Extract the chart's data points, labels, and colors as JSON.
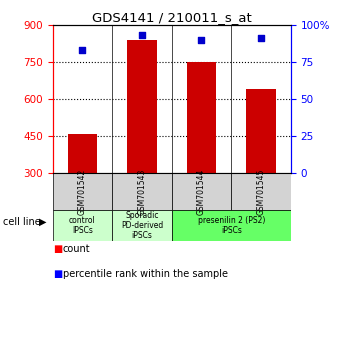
{
  "title": "GDS4141 / 210011_s_at",
  "samples": [
    "GSM701542",
    "GSM701543",
    "GSM701544",
    "GSM701545"
  ],
  "bar_values": [
    460,
    840,
    750,
    640
  ],
  "percentile_values": [
    83,
    93,
    90,
    91
  ],
  "bar_color": "#cc0000",
  "percentile_color": "#0000cc",
  "ylim_left": [
    300,
    900
  ],
  "ylim_right": [
    0,
    100
  ],
  "yticks_left": [
    300,
    450,
    600,
    750,
    900
  ],
  "yticks_right": [
    0,
    25,
    50,
    75,
    100
  ],
  "ytick_labels_right": [
    "0",
    "25",
    "50",
    "75",
    "100%"
  ],
  "grid_values": [
    450,
    600,
    750
  ],
  "cat0_label": "control\nIPSCs",
  "cat0_color": "#ccffcc",
  "cat1_label": "Sporadic\nPD-derived\niPSCs",
  "cat1_color": "#ccffcc",
  "cat23_label": "presenilin 2 (PS2)\niPSCs",
  "cat23_color": "#66ff66",
  "sample_box_color": "#d3d3d3",
  "cell_line_label": "cell line",
  "legend_count": "count",
  "legend_percentile": "percentile rank within the sample",
  "background_color": "#ffffff",
  "bar_width": 0.5
}
